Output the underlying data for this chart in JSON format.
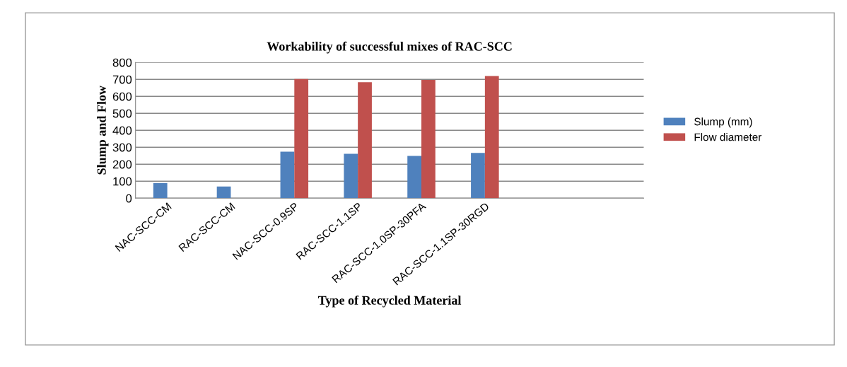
{
  "chart_data": {
    "type": "bar",
    "title": "Workability of successful mixes of RAC-SCC",
    "xlabel": "Type of Recycled Material",
    "ylabel": "Slump and Flow",
    "categories": [
      "NAC-SCC-CM",
      "RAC-SCC-CM",
      "NAC-SCC-0.9SP",
      "RAC-SCC-1.1SP",
      "RAC-SCC-1.0SP-30PFA",
      "RAC-SCC-1.1SP-30RGD",
      null,
      null
    ],
    "series": [
      {
        "name": "Slump (mm)",
        "color": "#4f81bd",
        "values": [
          89,
          69,
          274,
          261,
          249,
          267,
          null,
          null
        ]
      },
      {
        "name": "Flow diameter",
        "color": "#c0504d",
        "values": [
          null,
          null,
          702,
          683,
          697,
          720,
          null,
          null
        ]
      }
    ],
    "ylim": [
      0,
      800
    ],
    "yticks": [
      0,
      100,
      200,
      300,
      400,
      500,
      600,
      700,
      800
    ],
    "grid": "y",
    "legend": "right"
  }
}
